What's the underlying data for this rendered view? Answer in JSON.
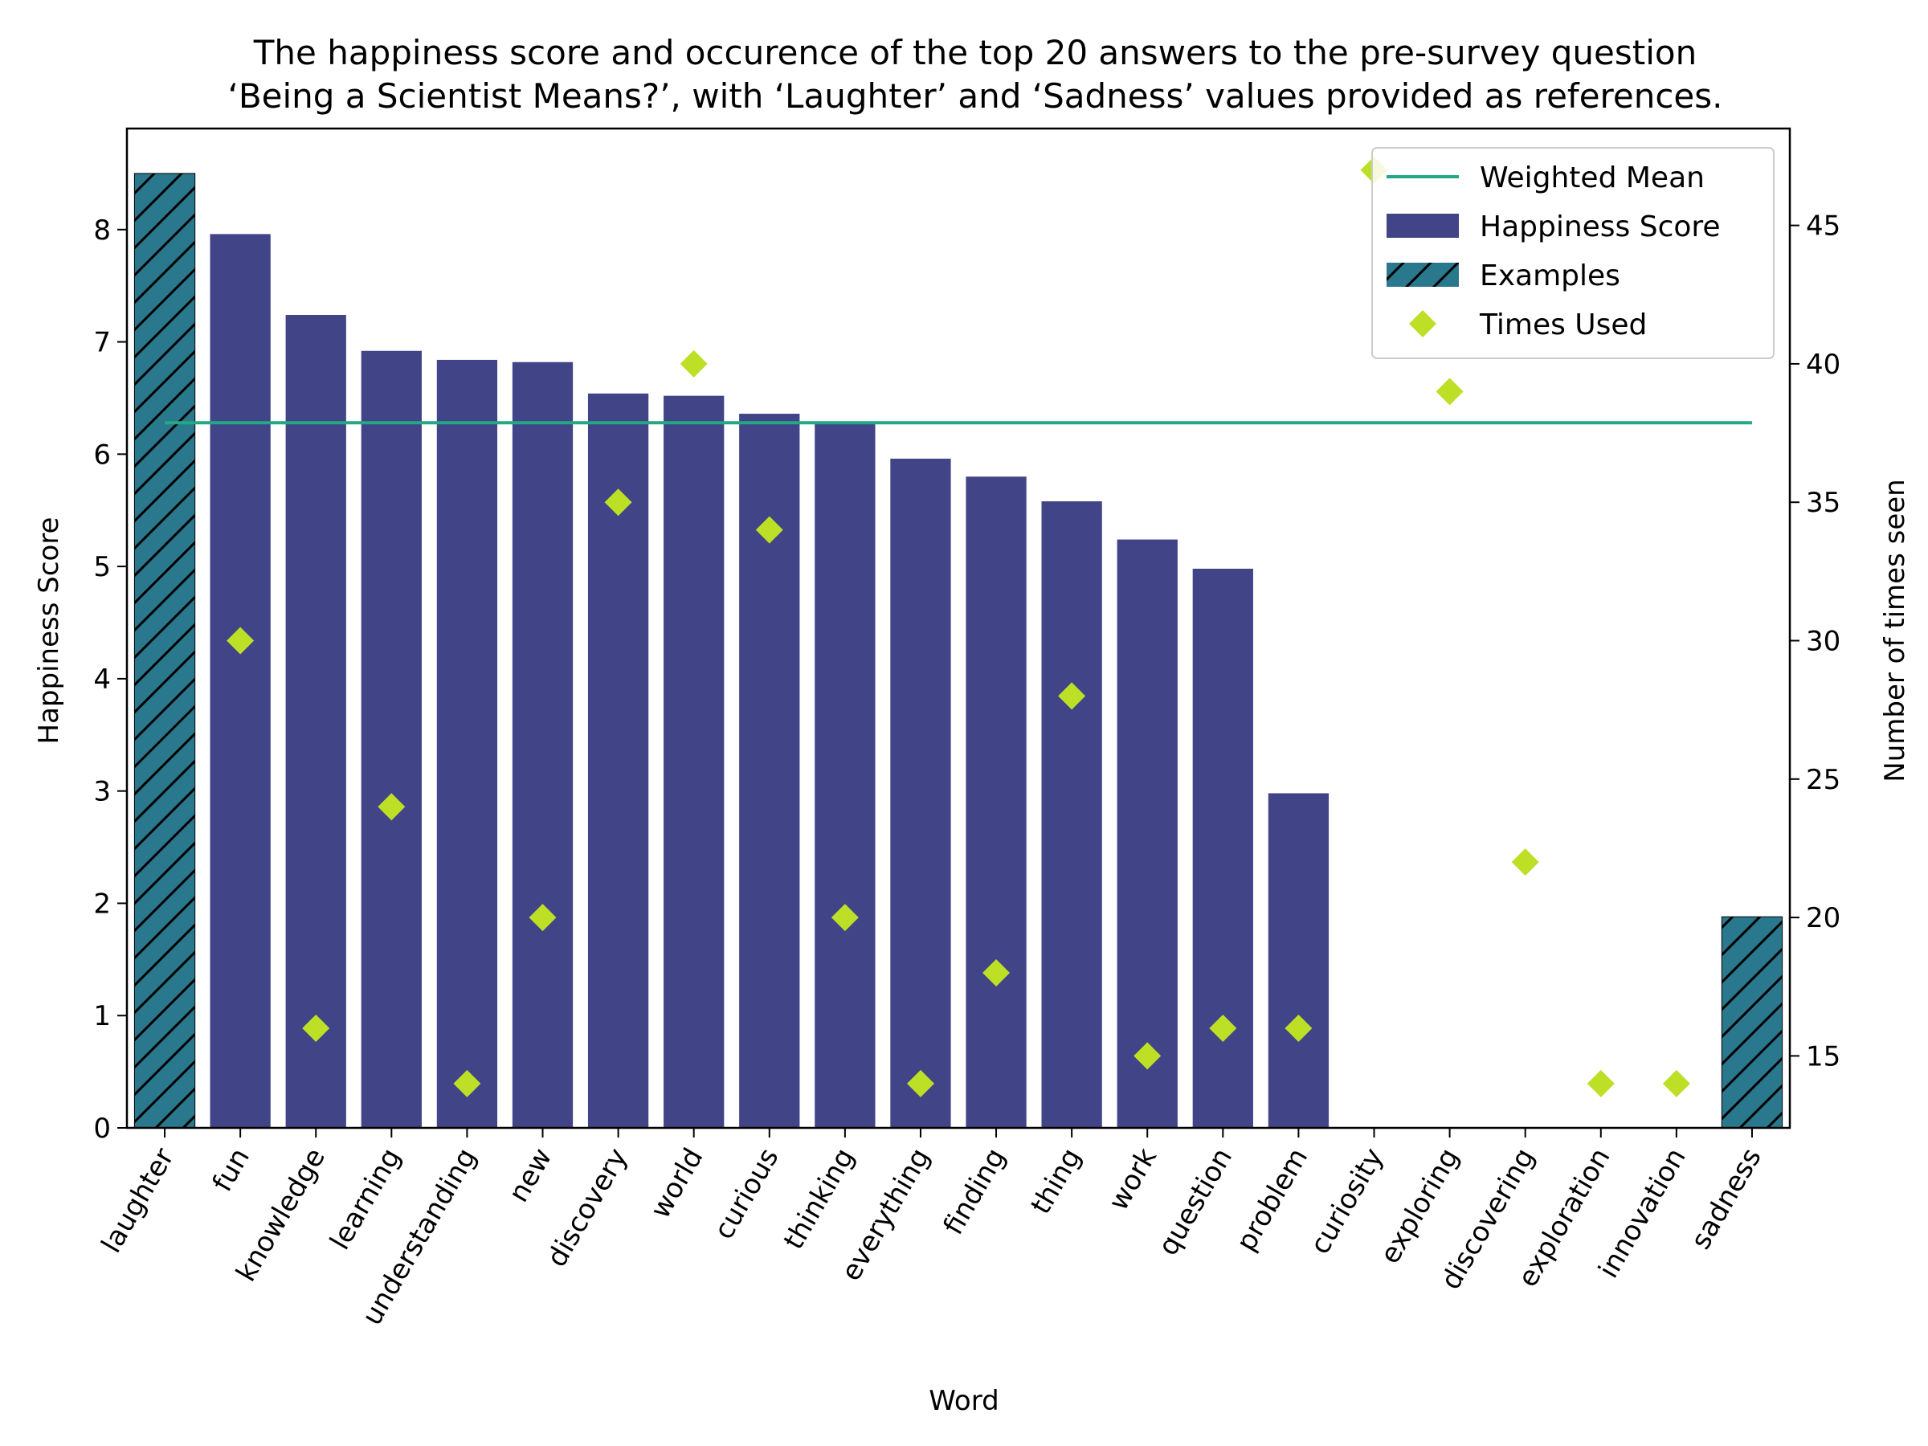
{
  "chart_data": {
    "type": "bar",
    "title_lines": [
      "The happiness score and occurence of the top 20 answers to the pre-survey question",
      "‘Being a Scientist Means?’, with ‘Laughter’ and ‘Sadness’ values provided as references."
    ],
    "xlabel": "Word",
    "ylabel": "Happiness Score",
    "ylabel_right": "Number of times seen",
    "categories": [
      "laughter",
      "fun",
      "knowledge",
      "learning",
      "understanding",
      "new",
      "discovery",
      "world",
      "curious",
      "thinking",
      "everything",
      "finding",
      "thing",
      "work",
      "question",
      "problem",
      "curiosity",
      "exploring",
      "discovering",
      "exploration",
      "innovation",
      "sadness"
    ],
    "series": [
      {
        "name": "Happiness Score",
        "values": [
          null,
          7.96,
          7.24,
          6.92,
          6.84,
          6.82,
          6.54,
          6.52,
          6.36,
          6.28,
          5.96,
          5.8,
          5.58,
          5.24,
          4.98,
          2.98,
          null,
          null,
          null,
          null,
          null,
          null
        ],
        "color": "#414487"
      },
      {
        "name": "Examples",
        "values": [
          8.5,
          null,
          null,
          null,
          null,
          null,
          null,
          null,
          null,
          null,
          null,
          null,
          null,
          null,
          null,
          null,
          null,
          null,
          null,
          null,
          null,
          1.88
        ],
        "color": "#2a788e",
        "hatch": "diagonal"
      },
      {
        "name": "Times Used",
        "axis": "right",
        "marker": "diamond",
        "values": [
          null,
          30,
          16,
          24,
          14,
          20,
          35,
          40,
          34,
          20,
          14,
          18,
          28,
          15,
          16,
          16,
          47,
          39,
          22,
          14,
          14,
          null
        ],
        "color": "#bddf26"
      }
    ],
    "weighted_mean": {
      "name": "Weighted Mean",
      "value": 6.28,
      "color": "#22a884"
    },
    "ylim": [
      0,
      8.9
    ],
    "ylim_right": [
      12.4,
      48.5
    ],
    "yticks": [
      0,
      1,
      2,
      3,
      4,
      5,
      6,
      7,
      8
    ],
    "yticks_right": [
      15,
      20,
      25,
      30,
      35,
      40,
      45
    ],
    "legend_placement": "top-right",
    "grid": false
  }
}
